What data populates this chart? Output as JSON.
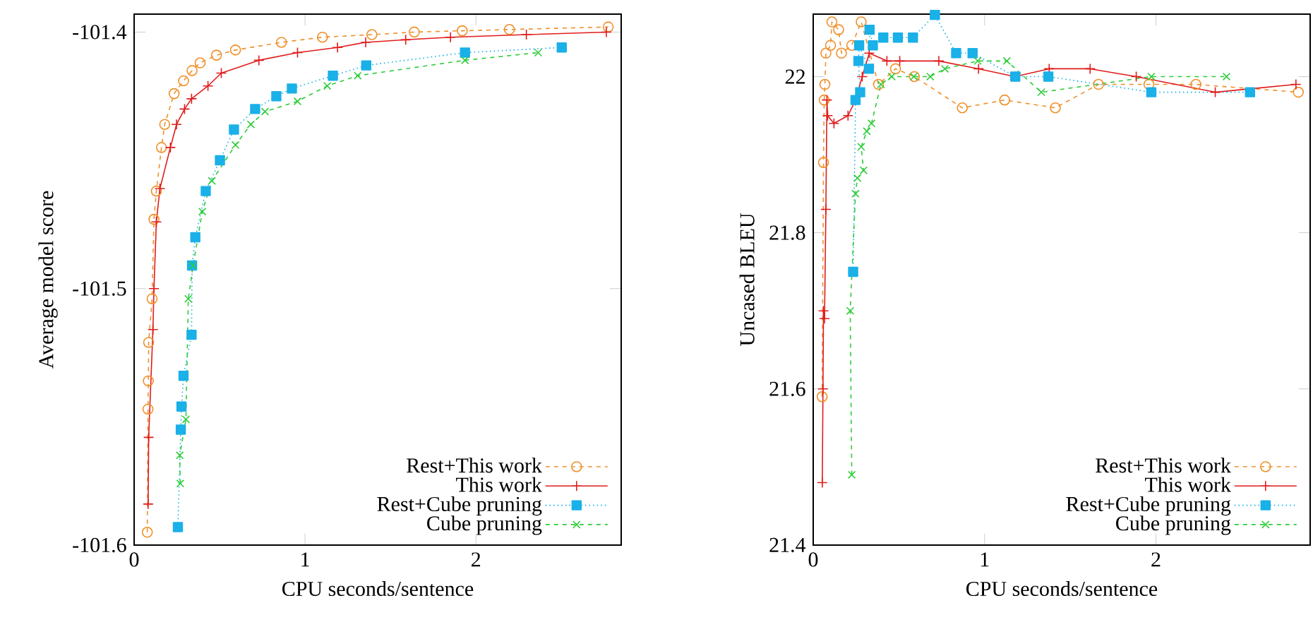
{
  "chart_data": [
    {
      "type": "line",
      "xlabel": "CPU seconds/sentence",
      "ylabel": "Average model score",
      "xlim": [
        0,
        2.85
      ],
      "ylim": [
        -101.6,
        -101.393
      ],
      "xticks": [
        0,
        1,
        2
      ],
      "yticks": [
        -101.6,
        -101.5,
        -101.4
      ],
      "legend": "bottom right",
      "series": [
        {
          "name": "Rest+This work",
          "color": "#f0902a",
          "marker": "circle",
          "line_style": "dashed",
          "x": [
            0.077,
            0.081,
            0.083,
            0.085,
            0.105,
            0.116,
            0.13,
            0.16,
            0.179,
            0.234,
            0.289,
            0.339,
            0.386,
            0.482,
            0.593,
            0.862,
            1.102,
            1.391,
            1.639,
            1.92,
            2.196,
            2.774
          ],
          "values": [
            -101.595,
            -101.547,
            -101.536,
            -101.521,
            -101.504,
            -101.473,
            -101.462,
            -101.445,
            -101.436,
            -101.424,
            -101.419,
            -101.415,
            -101.412,
            -101.409,
            -101.407,
            -101.404,
            -101.402,
            -101.401,
            -101.4,
            -101.3995,
            -101.399,
            -101.398
          ]
        },
        {
          "name": "This work",
          "color": "#e01c1c",
          "marker": "plus",
          "line_style": "solid",
          "x": [
            0.082,
            0.085,
            0.11,
            0.116,
            0.13,
            0.151,
            0.212,
            0.248,
            0.295,
            0.336,
            0.432,
            0.51,
            0.73,
            0.956,
            1.19,
            1.355,
            1.589,
            1.851,
            2.295,
            2.763
          ],
          "values": [
            -101.584,
            -101.558,
            -101.516,
            -101.5,
            -101.474,
            -101.461,
            -101.445,
            -101.436,
            -101.43,
            -101.426,
            -101.421,
            -101.416,
            -101.411,
            -101.408,
            -101.406,
            -101.404,
            -101.403,
            -101.402,
            -101.401,
            -101.4
          ]
        },
        {
          "name": "Rest+Cube pruning",
          "color": "#1ab0e8",
          "marker": "square",
          "line_style": "dotted",
          "x": [
            0.256,
            0.273,
            0.277,
            0.289,
            0.336,
            0.339,
            0.358,
            0.419,
            0.502,
            0.584,
            0.708,
            0.832,
            0.923,
            1.163,
            1.358,
            1.936,
            2.502
          ],
          "values": [
            -101.593,
            -101.555,
            -101.546,
            -101.534,
            -101.518,
            -101.491,
            -101.48,
            -101.462,
            -101.45,
            -101.438,
            -101.43,
            -101.425,
            -101.422,
            -101.417,
            -101.413,
            -101.408,
            -101.406
          ]
        },
        {
          "name": "Cube pruning",
          "color": "#2ecc3a",
          "marker": "cross",
          "line_style": "dashed",
          "x": [
            0.27,
            0.267,
            0.303,
            0.317,
            0.345,
            0.399,
            0.455,
            0.593,
            0.683,
            0.766,
            0.956,
            1.13,
            1.308,
            1.936,
            2.364
          ],
          "values": [
            -101.576,
            -101.565,
            -101.551,
            -101.504,
            -101.491,
            -101.47,
            -101.458,
            -101.444,
            -101.436,
            -101.431,
            -101.427,
            -101.421,
            -101.417,
            -101.411,
            -101.408
          ]
        }
      ]
    },
    {
      "type": "line",
      "xlabel": "CPU seconds/sentence",
      "ylabel": "Uncased BLEU",
      "xlim": [
        0,
        2.9
      ],
      "ylim": [
        21.4,
        22.08
      ],
      "xticks": [
        0,
        1,
        2
      ],
      "yticks": [
        21.4,
        21.6,
        21.8,
        22
      ],
      "legend": "bottom right",
      "series": [
        {
          "name": "Rest+This work",
          "color": "#f0902a",
          "marker": "circle",
          "line_style": "dashed",
          "x": [
            0.052,
            0.06,
            0.064,
            0.068,
            0.074,
            0.101,
            0.109,
            0.148,
            0.165,
            0.225,
            0.28,
            0.381,
            0.48,
            0.59,
            0.87,
            1.117,
            1.413,
            1.665,
            1.959,
            2.233,
            2.831
          ],
          "values": [
            21.59,
            21.89,
            21.97,
            21.99,
            22.03,
            22.04,
            22.07,
            22.06,
            22.03,
            22.04,
            22.07,
            21.99,
            22.01,
            22.0,
            21.96,
            21.97,
            21.96,
            21.99,
            21.99,
            21.99,
            21.98
          ]
        },
        {
          "name": "This work",
          "color": "#e01c1c",
          "marker": "plus",
          "line_style": "solid",
          "x": [
            0.053,
            0.057,
            0.06,
            0.066,
            0.074,
            0.08,
            0.084,
            0.121,
            0.203,
            0.247,
            0.286,
            0.327,
            0.43,
            0.505,
            0.733,
            0.965,
            1.177,
            1.377,
            1.616,
            1.885,
            2.346,
            2.817
          ],
          "values": [
            21.48,
            21.6,
            21.7,
            21.69,
            21.83,
            21.97,
            21.95,
            21.94,
            21.95,
            21.97,
            22.0,
            22.03,
            22.02,
            22.02,
            22.02,
            22.01,
            22.0,
            22.01,
            22.01,
            22.0,
            21.98,
            21.99
          ]
        },
        {
          "name": "Rest+Cube pruning",
          "color": "#1ab0e8",
          "marker": "square",
          "line_style": "dotted",
          "x": [
            0.233,
            0.247,
            0.274,
            0.264,
            0.268,
            0.325,
            0.329,
            0.348,
            0.409,
            0.494,
            0.582,
            0.71,
            0.834,
            0.93,
            1.179,
            1.372,
            1.973,
            2.549
          ],
          "values": [
            21.75,
            21.97,
            21.98,
            22.02,
            22.04,
            22.01,
            22.06,
            22.04,
            22.05,
            22.05,
            22.05,
            22.079,
            22.03,
            22.03,
            22.0,
            22.0,
            21.98,
            21.98
          ]
        },
        {
          "name": "Cube pruning",
          "color": "#2ecc3a",
          "marker": "cross",
          "line_style": "dashed",
          "x": [
            0.225,
            0.216,
            0.247,
            0.258,
            0.294,
            0.28,
            0.313,
            0.34,
            0.395,
            0.458,
            0.587,
            0.683,
            0.768,
            0.96,
            1.13,
            1.331,
            1.973,
            2.412
          ],
          "values": [
            21.49,
            21.7,
            21.85,
            21.87,
            21.88,
            21.91,
            21.93,
            21.94,
            21.99,
            22.0,
            22.0,
            22.0,
            22.01,
            22.02,
            22.02,
            21.98,
            22.0,
            22.0
          ]
        }
      ]
    }
  ]
}
